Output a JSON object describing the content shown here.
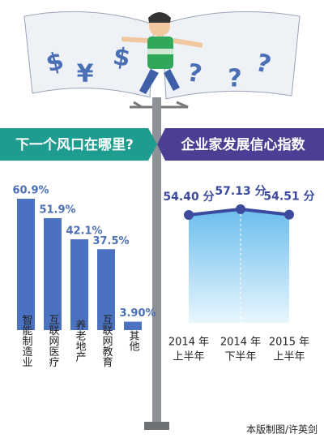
{
  "illustration": {
    "symbols": [
      "$",
      "¥",
      "$",
      "?",
      "?",
      "?"
    ]
  },
  "chart_data": [
    {
      "type": "bar",
      "title": "下一个风口在哪里?",
      "categories": [
        "智能制造业",
        "互联网医疗",
        "养老地产",
        "互联网教育",
        "其他"
      ],
      "values": [
        60.9,
        51.9,
        42.1,
        37.5,
        3.9
      ],
      "value_labels": [
        "60.9%",
        "51.9%",
        "42.1%",
        "37.5%",
        "3.90%"
      ],
      "color": "#4a72c0"
    },
    {
      "type": "line",
      "title": "企业家发展信心指数",
      "categories": [
        [
          "2014 年",
          "上半年"
        ],
        [
          "2014 年",
          "下半年"
        ],
        [
          "2015 年",
          "上半年"
        ]
      ],
      "values": [
        54.4,
        57.13,
        54.51
      ],
      "value_labels": [
        "54.40 分",
        "57.13 分",
        "54.51 分"
      ],
      "color": "#3c4a9e",
      "area_color": "#8fd0f2"
    }
  ],
  "source": "本版制图/许英剑"
}
